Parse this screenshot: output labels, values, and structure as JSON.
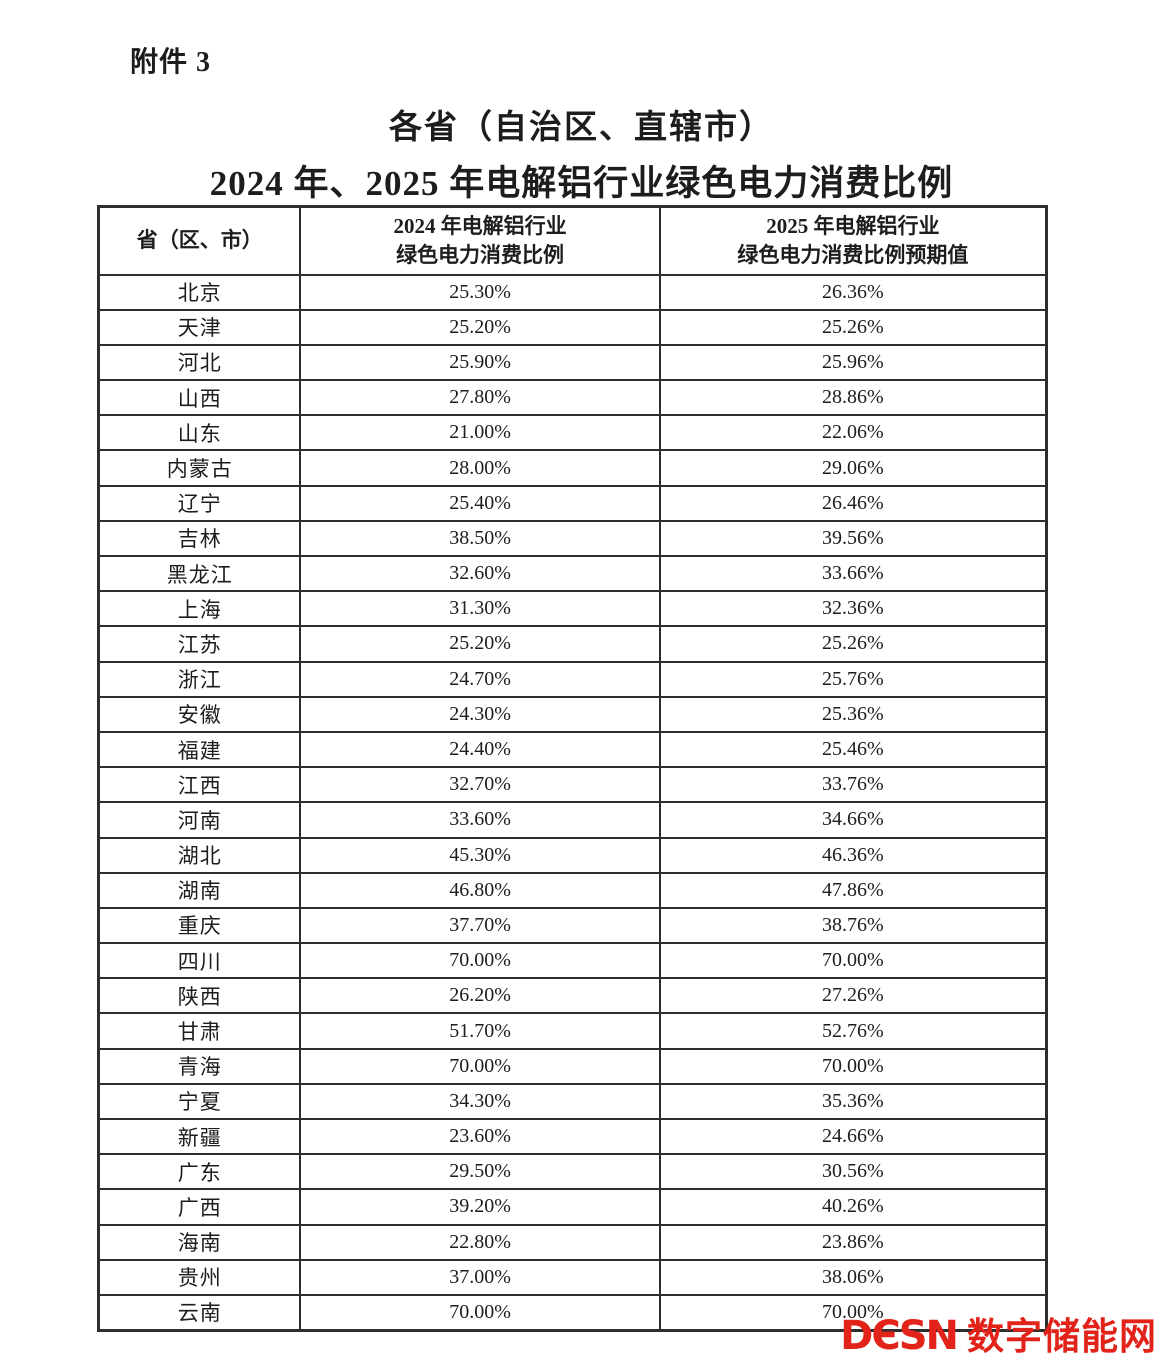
{
  "page": {
    "attachment_label": "附件 3",
    "title_line1": "各省（自治区、直辖市）",
    "title_line2": "2024 年、2025 年电解铝行业绿色电力消费比例"
  },
  "table": {
    "headers": {
      "province": "省（区、市）",
      "col2024_line1": "2024 年电解铝行业",
      "col2024_line2": "绿色电力消费比例",
      "col2025_line1": "2025 年电解铝行业",
      "col2025_line2": "绿色电力消费比例预期值"
    },
    "rows": [
      {
        "province": "北京",
        "ratio_2024": "25.30%",
        "ratio_2025": "26.36%"
      },
      {
        "province": "天津",
        "ratio_2024": "25.20%",
        "ratio_2025": "25.26%"
      },
      {
        "province": "河北",
        "ratio_2024": "25.90%",
        "ratio_2025": "25.96%"
      },
      {
        "province": "山西",
        "ratio_2024": "27.80%",
        "ratio_2025": "28.86%"
      },
      {
        "province": "山东",
        "ratio_2024": "21.00%",
        "ratio_2025": "22.06%"
      },
      {
        "province": "内蒙古",
        "ratio_2024": "28.00%",
        "ratio_2025": "29.06%"
      },
      {
        "province": "辽宁",
        "ratio_2024": "25.40%",
        "ratio_2025": "26.46%"
      },
      {
        "province": "吉林",
        "ratio_2024": "38.50%",
        "ratio_2025": "39.56%"
      },
      {
        "province": "黑龙江",
        "ratio_2024": "32.60%",
        "ratio_2025": "33.66%"
      },
      {
        "province": "上海",
        "ratio_2024": "31.30%",
        "ratio_2025": "32.36%"
      },
      {
        "province": "江苏",
        "ratio_2024": "25.20%",
        "ratio_2025": "25.26%"
      },
      {
        "province": "浙江",
        "ratio_2024": "24.70%",
        "ratio_2025": "25.76%"
      },
      {
        "province": "安徽",
        "ratio_2024": "24.30%",
        "ratio_2025": "25.36%"
      },
      {
        "province": "福建",
        "ratio_2024": "24.40%",
        "ratio_2025": "25.46%"
      },
      {
        "province": "江西",
        "ratio_2024": "32.70%",
        "ratio_2025": "33.76%"
      },
      {
        "province": "河南",
        "ratio_2024": "33.60%",
        "ratio_2025": "34.66%"
      },
      {
        "province": "湖北",
        "ratio_2024": "45.30%",
        "ratio_2025": "46.36%"
      },
      {
        "province": "湖南",
        "ratio_2024": "46.80%",
        "ratio_2025": "47.86%"
      },
      {
        "province": "重庆",
        "ratio_2024": "37.70%",
        "ratio_2025": "38.76%"
      },
      {
        "province": "四川",
        "ratio_2024": "70.00%",
        "ratio_2025": "70.00%"
      },
      {
        "province": "陕西",
        "ratio_2024": "26.20%",
        "ratio_2025": "27.26%"
      },
      {
        "province": "甘肃",
        "ratio_2024": "51.70%",
        "ratio_2025": "52.76%"
      },
      {
        "province": "青海",
        "ratio_2024": "70.00%",
        "ratio_2025": "70.00%"
      },
      {
        "province": "宁夏",
        "ratio_2024": "34.30%",
        "ratio_2025": "35.36%"
      },
      {
        "province": "新疆",
        "ratio_2024": "23.60%",
        "ratio_2025": "24.66%"
      },
      {
        "province": "广东",
        "ratio_2024": "29.50%",
        "ratio_2025": "30.56%"
      },
      {
        "province": "广西",
        "ratio_2024": "39.20%",
        "ratio_2025": "40.26%"
      },
      {
        "province": "海南",
        "ratio_2024": "22.80%",
        "ratio_2025": "23.86%"
      },
      {
        "province": "贵州",
        "ratio_2024": "37.00%",
        "ratio_2025": "38.06%"
      },
      {
        "province": "云南",
        "ratio_2024": "70.00%",
        "ratio_2025": "70.00%"
      }
    ]
  },
  "watermark": {
    "logo_latin": "DЄSN",
    "logo_cn": "数字储能网",
    "color": "#e2231a"
  }
}
